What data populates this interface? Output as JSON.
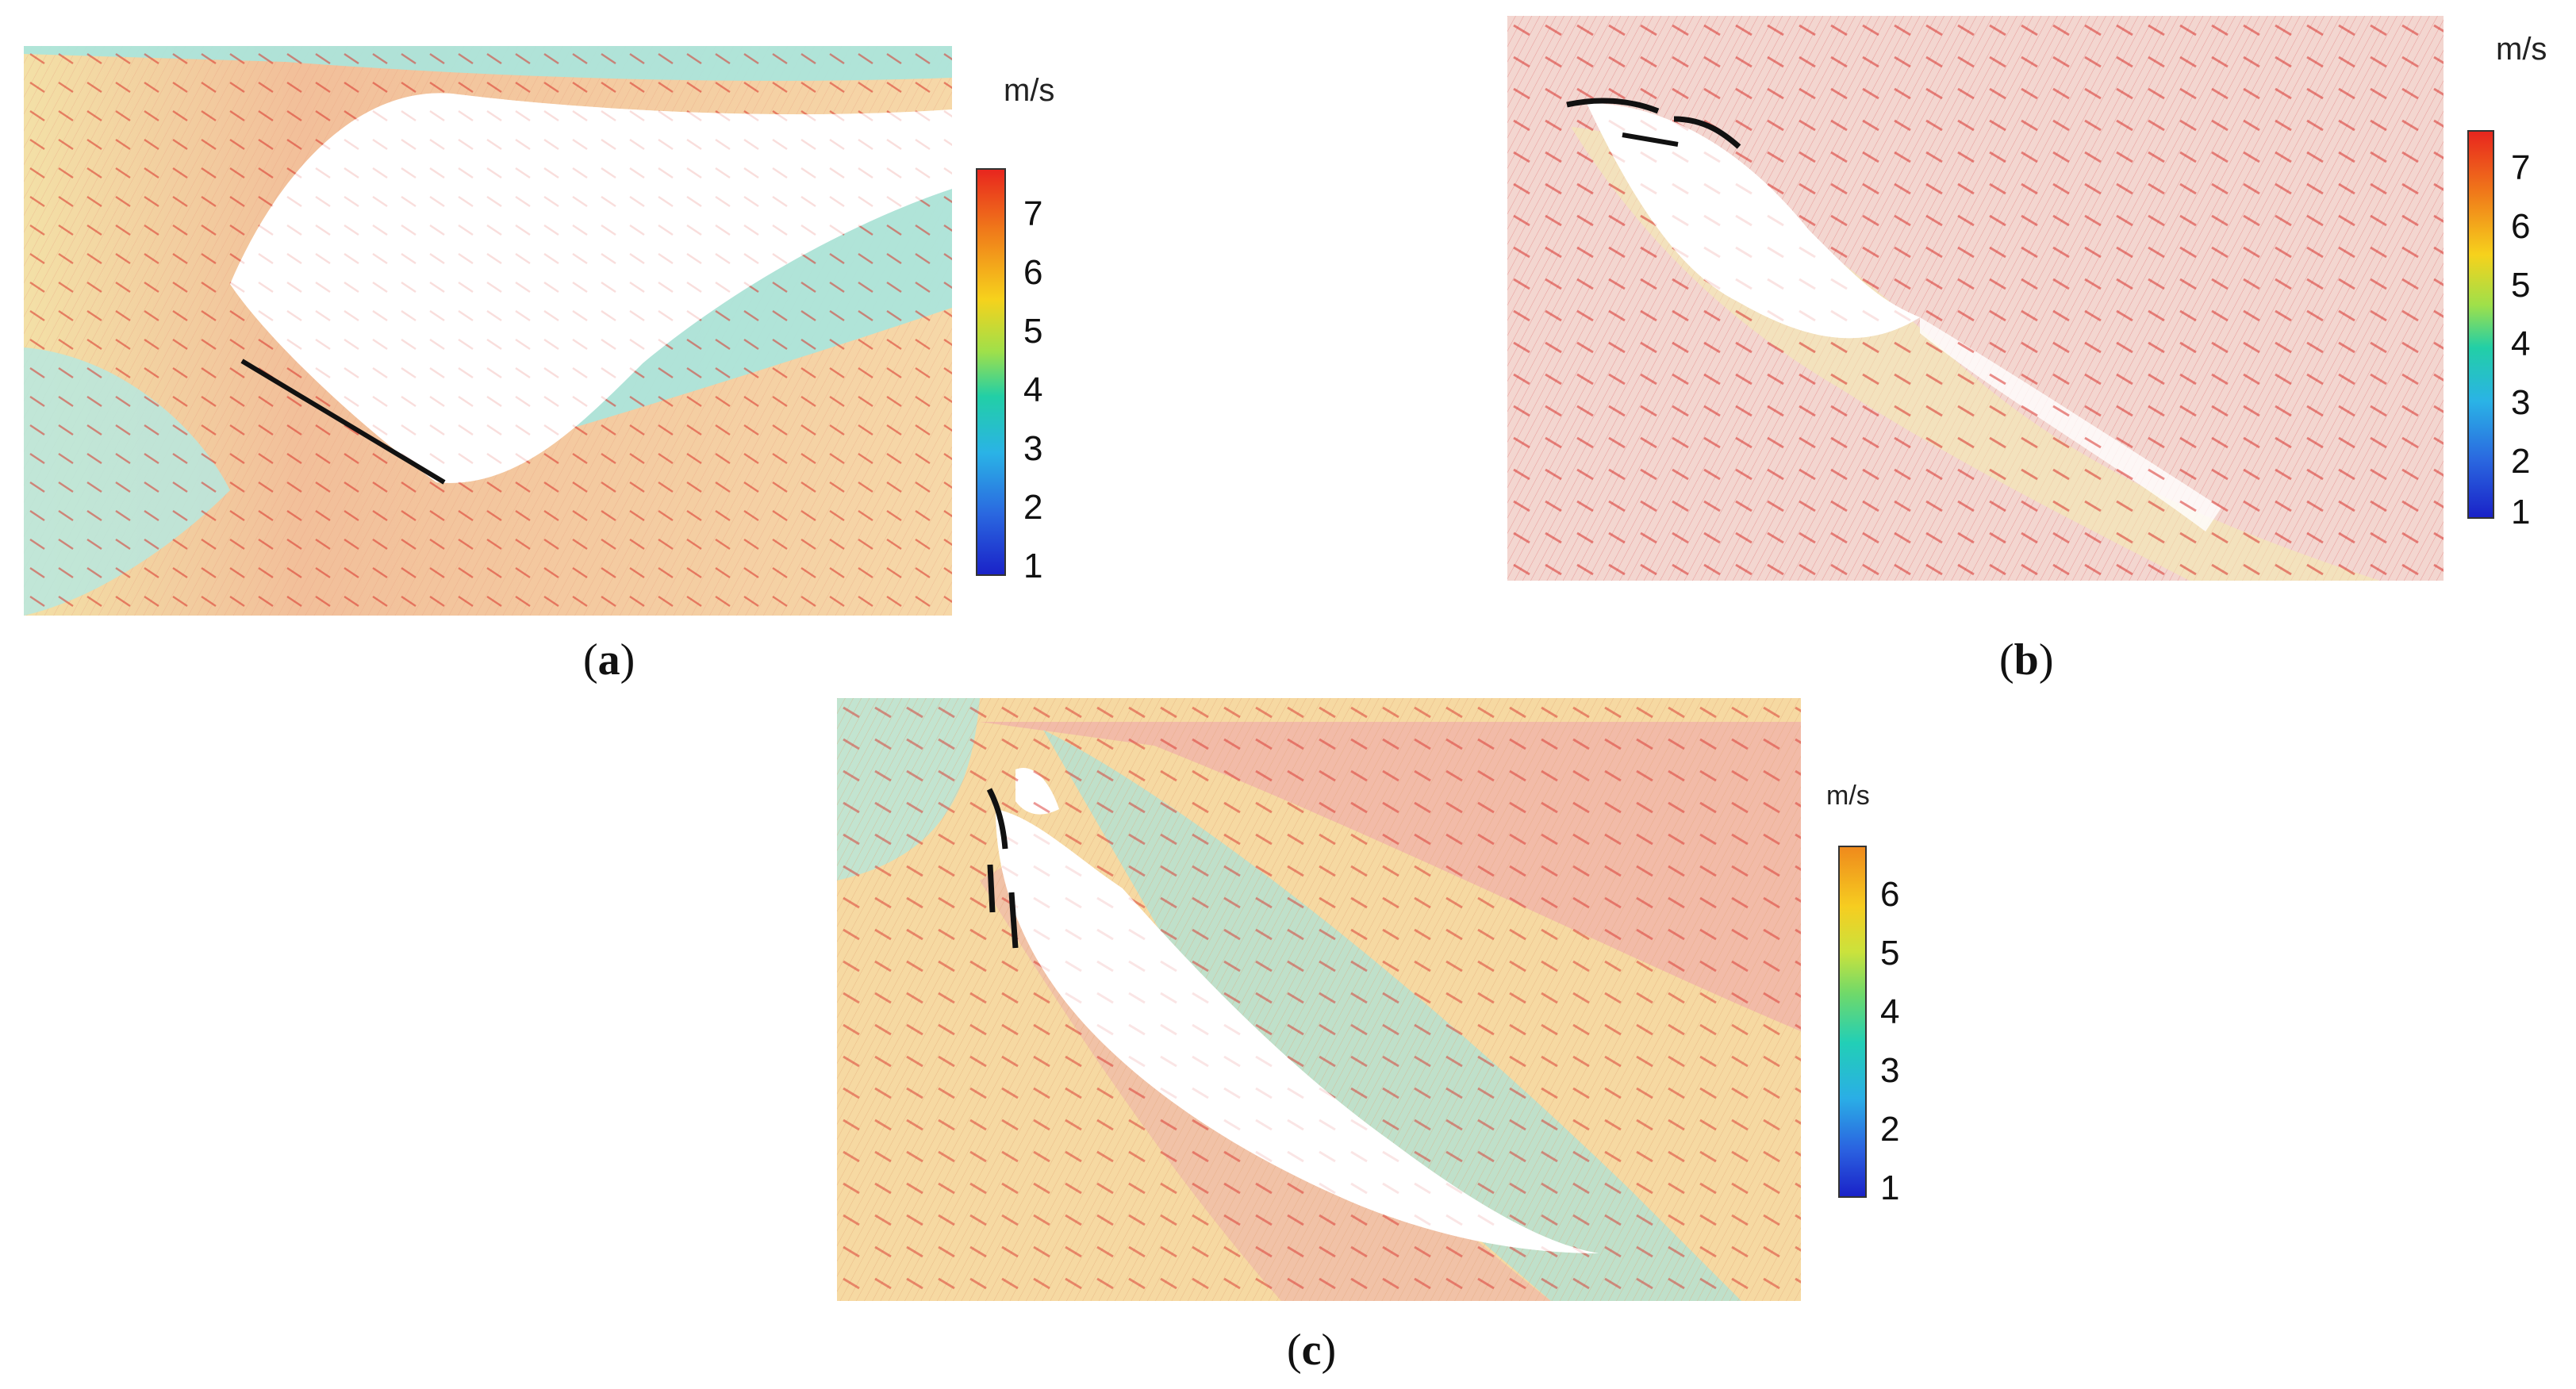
{
  "panels": [
    {
      "id": "a",
      "caption_open": "(",
      "caption_letter": "a",
      "caption_close": ")",
      "colorbar": {
        "unit": "m/s",
        "ticks": [
          "7",
          "6",
          "5",
          "4",
          "3",
          "2",
          "1"
        ],
        "min": 1,
        "max": 7.8,
        "top_color": "#e8261e"
      },
      "flow_direction": "lower-right",
      "plate_type": "single flat plate",
      "colors": {
        "wake": "#ffffff",
        "free_stream": "#f6d79b",
        "fast": "#f0a89a",
        "slow": "#9fe3dc"
      }
    },
    {
      "id": "b",
      "caption_open": "(",
      "caption_letter": "b",
      "caption_close": ")",
      "colorbar": {
        "unit": "m/s",
        "ticks": [
          "7",
          "6",
          "5",
          "4",
          "3",
          "2",
          "1"
        ],
        "min": 1,
        "max": 7.8,
        "top_color": "#e8261e"
      },
      "flow_direction": "lower-right",
      "plate_type": "two-element curved plate",
      "colors": {
        "wake": "#ffffff",
        "free_stream": "#efc9c4",
        "fast": "#e04444",
        "slow": "#9fe3dc"
      }
    },
    {
      "id": "c",
      "caption_open": "(",
      "caption_letter": "c",
      "caption_close": ")",
      "colorbar": {
        "unit": "m/s",
        "ticks": [
          "6",
          "5",
          "4",
          "3",
          "2",
          "1"
        ],
        "min": 1,
        "max": 6.8,
        "top_color": "#ef8a1c"
      },
      "flow_direction": "lower-right",
      "plate_type": "three-element slotted plate",
      "colors": {
        "wake": "#ffffff",
        "free_stream": "#f6d79b",
        "fast": "#ee9aa0",
        "slow": "#a6e6e0"
      }
    }
  ]
}
